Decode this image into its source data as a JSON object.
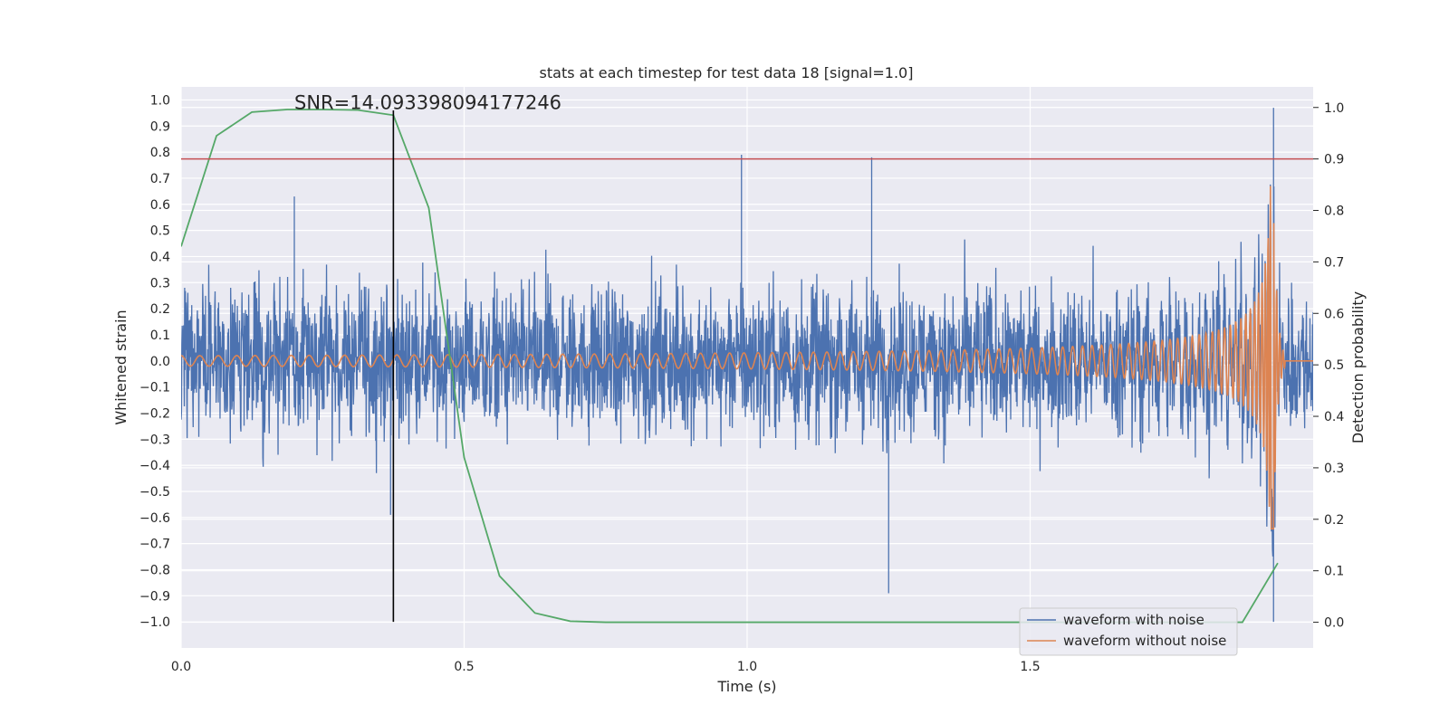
{
  "chart_data": {
    "type": "line",
    "title": "stats at each timestep for test data 18 [signal=1.0]",
    "xlabel": "Time (s)",
    "ylabel": "Whitened strain",
    "ylabel_right": "Detection probability",
    "xlim": [
      0.0,
      2.0
    ],
    "ylim": [
      -1.1,
      1.05
    ],
    "ylim_right": [
      -0.05,
      1.04
    ],
    "x_ticks": [
      0.0,
      0.5,
      1.0,
      1.5
    ],
    "x_tick_labels": [
      "0.0",
      "0.5",
      "1.0",
      "1.5"
    ],
    "y_ticks": [
      1.0,
      0.9,
      0.8,
      0.7,
      0.6,
      0.5,
      0.4,
      0.3,
      0.2,
      0.1,
      0.0,
      -0.1,
      -0.2,
      -0.3,
      -0.4,
      -0.5,
      -0.6,
      -0.7,
      -0.8,
      -0.9,
      -1.0
    ],
    "y_tick_labels": [
      "1.0",
      "0.9",
      "0.8",
      "0.7",
      "0.6",
      "0.5",
      "0.4",
      "0.3",
      "0.2",
      "0.1",
      "0.0",
      "−0.1",
      "−0.2",
      "−0.3",
      "−0.4",
      "−0.5",
      "−0.6",
      "−0.7",
      "−0.8",
      "−0.9",
      "−1.0"
    ],
    "y_ticks_right": [
      1.0,
      0.9,
      0.8,
      0.7,
      0.6,
      0.5,
      0.4,
      0.3,
      0.2,
      0.1,
      0.0
    ],
    "y_tick_labels_right": [
      "1.0",
      "0.9",
      "0.8",
      "0.7",
      "0.6",
      "0.5",
      "0.4",
      "0.3",
      "0.2",
      "0.1",
      "0.0"
    ],
    "grid": true,
    "background": "#eaeaf2",
    "legend_position": "lower-right",
    "annotation": "SNR=14.093398094177246",
    "annotation_at": [
      0.2,
      0.99
    ],
    "series": [
      {
        "name": "waveform with noise",
        "color": "#4c72b0",
        "kind": "noise",
        "x_range": [
          0.0,
          2.0
        ],
        "amplitude_typical": 0.28,
        "min": -1.0,
        "max": 0.97,
        "notable_points": [
          [
            0.2,
            0.63
          ],
          [
            0.37,
            -0.59
          ],
          [
            0.99,
            0.79
          ],
          [
            1.22,
            0.78
          ],
          [
            1.25,
            -0.89
          ],
          [
            1.93,
            0.97
          ],
          [
            1.93,
            -1.0
          ]
        ]
      },
      {
        "name": "waveform without noise",
        "color": "#dd8452",
        "kind": "chirp",
        "x_range": [
          0.0,
          2.0
        ],
        "merger_time": 1.93,
        "amplitude_start": 0.02,
        "amplitude_peak": 0.68,
        "amplitude_min": -0.65
      },
      {
        "color": "#55a868",
        "axis": "right",
        "x": [
          0.0,
          0.0625,
          0.125,
          0.1875,
          0.25,
          0.3125,
          0.375,
          0.4375,
          0.5,
          0.5625,
          0.625,
          0.6875,
          0.75,
          1.0,
          1.25,
          1.5,
          1.75,
          1.8125,
          1.875,
          1.9375
        ],
        "values": [
          0.73,
          0.945,
          0.991,
          0.996,
          0.996,
          0.995,
          0.985,
          0.805,
          0.32,
          0.09,
          0.018,
          0.002,
          0.0,
          0.0,
          0.0,
          0.0,
          0.0,
          0.0,
          0.0,
          0.115
        ]
      }
    ],
    "threshold_line": {
      "color": "#c44e52",
      "axis": "right",
      "value": 0.9
    },
    "marker_line": {
      "color": "#000000",
      "x": 0.375,
      "y_range": [
        -1.0,
        0.96
      ]
    }
  }
}
